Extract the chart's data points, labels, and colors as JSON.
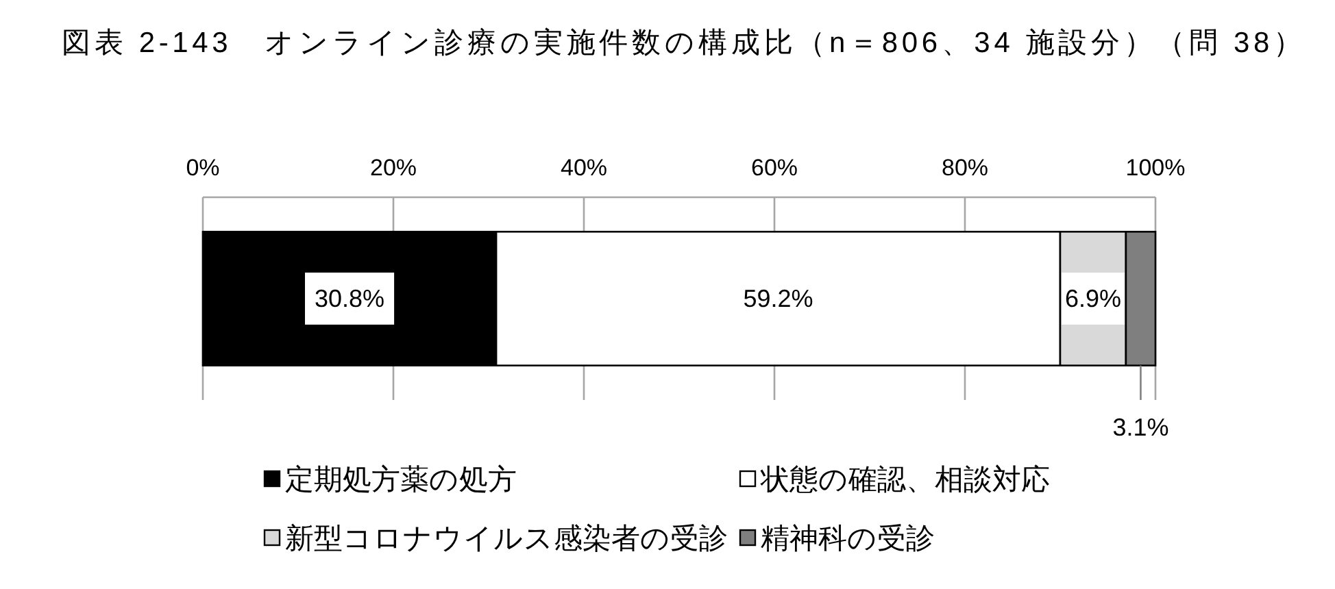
{
  "chart_data": {
    "type": "bar",
    "orientation": "horizontal",
    "stacked": true,
    "title": "図表 2-143　オンライン診療の実施件数の構成比（n＝806、34 施設分）（問 38）",
    "categories": [
      null
    ],
    "series": [
      {
        "name": "定期処方薬の処方",
        "color": "#000000",
        "values": [
          30.8
        ],
        "value_labels": [
          "30.8%"
        ]
      },
      {
        "name": "状態の確認、相談対応",
        "color": "#ffffff",
        "values": [
          59.2
        ],
        "value_labels": [
          "59.2%"
        ]
      },
      {
        "name": "新型コロナウイルス感染者の受診",
        "color": "#d9d9d9",
        "values": [
          6.9
        ],
        "value_labels": [
          "6.9%"
        ]
      },
      {
        "name": "精神科の受診",
        "color": "#7f7f7f",
        "values": [
          3.1
        ],
        "value_labels": [
          "3.1%"
        ]
      }
    ],
    "xlim": [
      0,
      100
    ],
    "xticks": [
      {
        "value": 0,
        "label": "0%"
      },
      {
        "value": 20,
        "label": "20%"
      },
      {
        "value": 40,
        "label": "40%"
      },
      {
        "value": 60,
        "label": "60%"
      },
      {
        "value": 80,
        "label": "80%"
      },
      {
        "value": 100,
        "label": "100%"
      }
    ],
    "grid": "x",
    "legend": "bottom"
  }
}
